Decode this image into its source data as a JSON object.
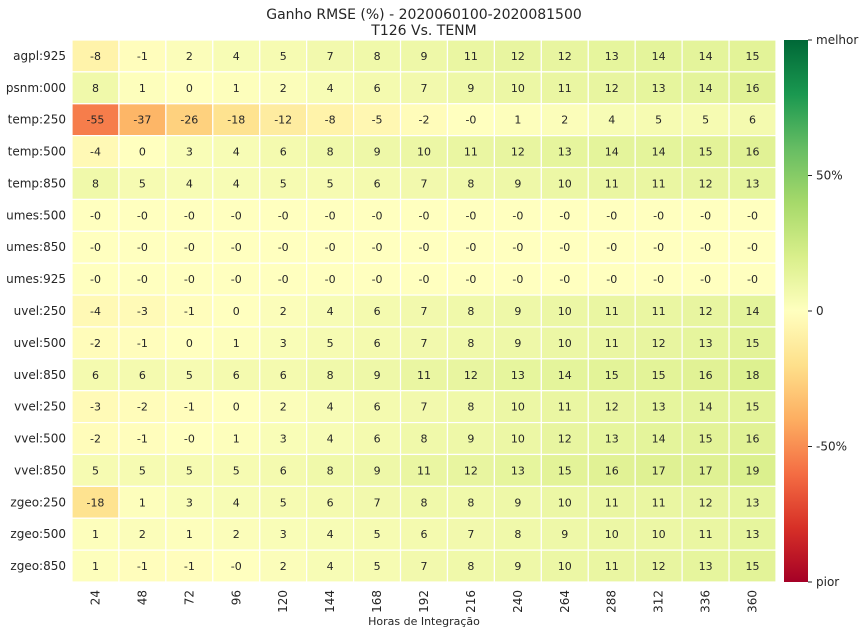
{
  "chart_data": {
    "type": "heatmap",
    "title_line1": "Ganho RMSE (%) - 2020060100-2020081500",
    "title_line2": "T126 Vs. TENM",
    "xlabel": "Horas de Integração",
    "ylabel": "",
    "x": [
      "24",
      "48",
      "72",
      "96",
      "120",
      "144",
      "168",
      "192",
      "216",
      "240",
      "264",
      "288",
      "312",
      "336",
      "360"
    ],
    "y": [
      "agpl:925",
      "psnm:000",
      "temp:250",
      "temp:500",
      "temp:850",
      "umes:500",
      "umes:850",
      "umes:925",
      "uvel:250",
      "uvel:500",
      "uvel:850",
      "vvel:250",
      "vvel:500",
      "vvel:850",
      "zgeo:250",
      "zgeo:500",
      "zgeo:850"
    ],
    "values": [
      [
        -8,
        -1,
        2,
        4,
        5,
        7,
        8,
        9,
        11,
        12,
        12,
        13,
        14,
        14,
        15
      ],
      [
        8,
        1,
        0,
        1,
        2,
        4,
        6,
        7,
        9,
        10,
        11,
        12,
        13,
        14,
        16
      ],
      [
        -55,
        -37,
        -26,
        -18,
        -12,
        -8,
        -5,
        -2,
        0,
        1,
        2,
        4,
        5,
        5,
        6
      ],
      [
        -4,
        0,
        3,
        4,
        6,
        8,
        9,
        10,
        11,
        12,
        13,
        14,
        14,
        15,
        16
      ],
      [
        8,
        5,
        4,
        4,
        5,
        5,
        6,
        7,
        8,
        9,
        10,
        11,
        11,
        12,
        13
      ],
      [
        0,
        0,
        0,
        0,
        0,
        0,
        0,
        0,
        0,
        0,
        0,
        0,
        0,
        0,
        0
      ],
      [
        0,
        0,
        0,
        0,
        0,
        0,
        0,
        0,
        0,
        0,
        0,
        0,
        0,
        0,
        0
      ],
      [
        0,
        0,
        0,
        0,
        0,
        0,
        0,
        0,
        0,
        0,
        0,
        0,
        0,
        0,
        0
      ],
      [
        -4,
        -3,
        -1,
        0,
        2,
        4,
        6,
        7,
        8,
        9,
        10,
        11,
        11,
        12,
        14
      ],
      [
        -2,
        -1,
        0,
        1,
        3,
        5,
        6,
        7,
        8,
        9,
        10,
        11,
        12,
        13,
        15
      ],
      [
        6,
        6,
        5,
        6,
        6,
        8,
        9,
        11,
        12,
        13,
        14,
        15,
        15,
        16,
        18
      ],
      [
        -3,
        -2,
        -1,
        0,
        2,
        4,
        6,
        7,
        8,
        10,
        11,
        12,
        13,
        14,
        15
      ],
      [
        -2,
        -1,
        0,
        1,
        3,
        4,
        6,
        8,
        9,
        10,
        12,
        13,
        14,
        15,
        16
      ],
      [
        5,
        5,
        5,
        5,
        6,
        8,
        9,
        11,
        12,
        13,
        15,
        16,
        17,
        17,
        19
      ],
      [
        -18,
        1,
        3,
        4,
        5,
        6,
        7,
        8,
        8,
        9,
        10,
        11,
        11,
        12,
        13
      ],
      [
        1,
        2,
        1,
        2,
        3,
        4,
        5,
        6,
        7,
        8,
        9,
        10,
        10,
        11,
        13
      ],
      [
        1,
        -1,
        -1,
        0,
        2,
        4,
        5,
        7,
        8,
        9,
        10,
        11,
        12,
        13,
        15
      ]
    ],
    "vmin": -100,
    "vmax": 100,
    "colormap": "RdYlGn",
    "colorbar": {
      "ticks": [
        {
          "value": 100,
          "label": "melhor"
        },
        {
          "value": 50,
          "label": "50%"
        },
        {
          "value": 0,
          "label": "0"
        },
        {
          "value": -50,
          "label": "-50%"
        },
        {
          "value": -100,
          "label": "pior"
        }
      ]
    },
    "grid": false,
    "legend": "right"
  }
}
